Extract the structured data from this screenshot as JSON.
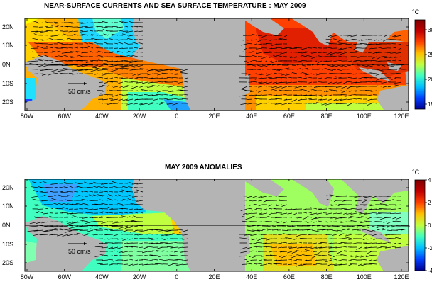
{
  "top_panel": {
    "title": "NEAR-SURFACE CURRENTS AND SEA SURFACE TEMPERATURE : MAY 2009",
    "colorbar_unit": "°C",
    "colorbar_ticks": [
      "30",
      "25",
      "20",
      "15"
    ],
    "colorbar_range": [
      14,
      32
    ],
    "colors": [
      "#00008f",
      "#0040ff",
      "#00c0ff",
      "#40ffc0",
      "#c0ff40",
      "#ffc000",
      "#ff4000",
      "#c00000",
      "#800000"
    ],
    "scale_label": "50 cm/s"
  },
  "bottom_panel": {
    "title": "MAY 2009 ANOMALIES",
    "colorbar_unit": "°C",
    "colorbar_ticks": [
      "4",
      "2",
      "0",
      "-2",
      "-4"
    ],
    "colorbar_range": [
      -4,
      4
    ],
    "colors": [
      "#00008f",
      "#0040ff",
      "#00c0ff",
      "#40ffc0",
      "#c0ff40",
      "#ffc000",
      "#ff4000",
      "#c00000",
      "#800000"
    ],
    "scale_label": "50 cm/s"
  },
  "axes": {
    "lon_labels": [
      "80W",
      "60W",
      "40W",
      "20W",
      "0",
      "20E",
      "40E",
      "60E",
      "80E",
      "100E",
      "120E"
    ],
    "lat_labels": [
      "20N",
      "10N",
      "0N",
      "10S",
      "20S"
    ]
  },
  "land_color": "#b4b4b4"
}
